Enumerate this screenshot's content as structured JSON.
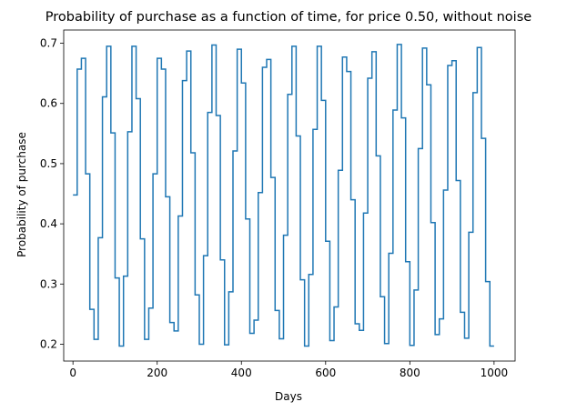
{
  "chart_data": {
    "type": "line",
    "title": "Probability of purchase as a function of time, for price 0.50, without noise",
    "xlabel": "Days",
    "ylabel": "Probability of purchase",
    "xlim": [
      -22,
      1050
    ],
    "ylim": [
      0.172,
      0.722
    ],
    "xticks": [
      0,
      200,
      400,
      600,
      800,
      1000
    ],
    "yticks": [
      0.2,
      0.3,
      0.4,
      0.5,
      0.6,
      0.7
    ],
    "ytick_format": 1,
    "grid": false,
    "legend": "none",
    "line_color": "#1f77b4",
    "step_days": 10,
    "series": [
      {
        "x": [
          0,
          10,
          20,
          30,
          40,
          50,
          60,
          70,
          80,
          90,
          100,
          110,
          120,
          130,
          140,
          150,
          160,
          170,
          180,
          190,
          200,
          210,
          220,
          230,
          240,
          250,
          260,
          270,
          280,
          290,
          300,
          310,
          320,
          330,
          340,
          350,
          360,
          370,
          380,
          390,
          400,
          410,
          420,
          430,
          440,
          450,
          460,
          470,
          480,
          490,
          500,
          510,
          520,
          530,
          540,
          550,
          560,
          570,
          580,
          590,
          600,
          610,
          620,
          630,
          640,
          650,
          660,
          670,
          680,
          690,
          700,
          710,
          720,
          730,
          740,
          750,
          760,
          770,
          780,
          790,
          800,
          810,
          820,
          830,
          840,
          850,
          860,
          870,
          880,
          890,
          900,
          910,
          920,
          930,
          940,
          950,
          960,
          970,
          980,
          990,
          1000
        ],
        "y": [
          0.448,
          0.657,
          0.675,
          0.483,
          0.258,
          0.208,
          0.377,
          0.611,
          0.695,
          0.551,
          0.31,
          0.197,
          0.313,
          0.553,
          0.695,
          0.608,
          0.375,
          0.208,
          0.26,
          0.483,
          0.675,
          0.657,
          0.445,
          0.236,
          0.222,
          0.413,
          0.638,
          0.687,
          0.518,
          0.282,
          0.2,
          0.347,
          0.585,
          0.697,
          0.58,
          0.34,
          0.199,
          0.287,
          0.521,
          0.69,
          0.634,
          0.408,
          0.218,
          0.24,
          0.452,
          0.66,
          0.673,
          0.477,
          0.256,
          0.209,
          0.381,
          0.615,
          0.695,
          0.546,
          0.307,
          0.197,
          0.316,
          0.557,
          0.695,
          0.605,
          0.371,
          0.206,
          0.262,
          0.489,
          0.677,
          0.653,
          0.44,
          0.234,
          0.223,
          0.418,
          0.642,
          0.686,
          0.513,
          0.279,
          0.201,
          0.351,
          0.589,
          0.698,
          0.576,
          0.337,
          0.198,
          0.29,
          0.525,
          0.692,
          0.631,
          0.402,
          0.216,
          0.242,
          0.456,
          0.663,
          0.671,
          0.472,
          0.253,
          0.21,
          0.386,
          0.618,
          0.693,
          0.542,
          0.304,
          0.197,
          0.197
        ]
      }
    ]
  }
}
